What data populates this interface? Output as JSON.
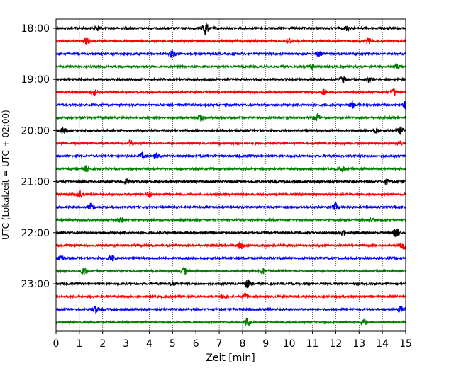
{
  "chart_data": {
    "type": "line",
    "title": "",
    "xlabel": "Zeit  [min]",
    "ylabel": "UTC (Lokalzeit = UTC + 02:00)",
    "xlim": [
      0,
      15
    ],
    "x_ticks": [
      0,
      1,
      2,
      3,
      4,
      5,
      6,
      7,
      8,
      9,
      10,
      11,
      12,
      13,
      14,
      15
    ],
    "x_tick_labels": [
      "0",
      "1",
      "2",
      "3",
      "4",
      "5",
      "6",
      "7",
      "8",
      "9",
      "10",
      "11",
      "12",
      "13",
      "14",
      "15"
    ],
    "y_tick_labels": [
      "18:00",
      "19:00",
      "20:00",
      "21:00",
      "22:00",
      "23:00"
    ],
    "trace_interval_min": 15,
    "first_trace_time": "18:00",
    "trace_count": 24,
    "trace_colors": [
      "#000000",
      "#ff0000",
      "#0000ff",
      "#008000"
    ],
    "vertical_grid": true,
    "grid_style": "dotted",
    "series": [
      {
        "start": "18:00",
        "color": "#000000",
        "events": [
          [
            6.4,
            1.0
          ],
          [
            1.8,
            0.35
          ],
          [
            12.5,
            0.35
          ]
        ]
      },
      {
        "start": "18:15",
        "color": "#ff0000",
        "events": [
          [
            1.3,
            0.45
          ],
          [
            10.0,
            0.4
          ],
          [
            13.4,
            0.4
          ]
        ]
      },
      {
        "start": "18:30",
        "color": "#0000ff",
        "events": [
          [
            5.0,
            0.45
          ],
          [
            11.3,
            0.35
          ]
        ]
      },
      {
        "start": "18:45",
        "color": "#008000",
        "events": [
          [
            11.0,
            0.35
          ],
          [
            14.6,
            0.35
          ]
        ]
      },
      {
        "start": "19:00",
        "color": "#000000",
        "events": [
          [
            12.3,
            0.4
          ],
          [
            13.4,
            0.35
          ]
        ]
      },
      {
        "start": "19:15",
        "color": "#ff0000",
        "events": [
          [
            1.6,
            0.6
          ],
          [
            11.5,
            0.35
          ],
          [
            14.5,
            0.5
          ]
        ]
      },
      {
        "start": "19:30",
        "color": "#0000ff",
        "events": [
          [
            12.7,
            0.5
          ],
          [
            15.0,
            0.5
          ]
        ]
      },
      {
        "start": "19:45",
        "color": "#008000",
        "events": [
          [
            6.2,
            0.4
          ],
          [
            11.2,
            0.6
          ]
        ]
      },
      {
        "start": "20:00",
        "color": "#000000",
        "events": [
          [
            0.3,
            0.5
          ],
          [
            13.7,
            0.45
          ],
          [
            14.8,
            0.55
          ]
        ]
      },
      {
        "start": "20:15",
        "color": "#ff0000",
        "events": [
          [
            3.2,
            0.45
          ],
          [
            14.7,
            0.35
          ]
        ]
      },
      {
        "start": "20:30",
        "color": "#0000ff",
        "events": [
          [
            3.7,
            0.4
          ],
          [
            4.3,
            0.35
          ]
        ]
      },
      {
        "start": "20:45",
        "color": "#008000",
        "events": [
          [
            1.3,
            0.4
          ],
          [
            12.3,
            0.35
          ]
        ]
      },
      {
        "start": "21:00",
        "color": "#000000",
        "events": [
          [
            3.0,
            0.35
          ],
          [
            14.2,
            0.35
          ]
        ]
      },
      {
        "start": "21:15",
        "color": "#ff0000",
        "events": [
          [
            1.0,
            0.4
          ],
          [
            4.0,
            0.35
          ]
        ]
      },
      {
        "start": "21:30",
        "color": "#0000ff",
        "events": [
          [
            1.5,
            0.5
          ],
          [
            12.0,
            0.5
          ]
        ]
      },
      {
        "start": "21:45",
        "color": "#008000",
        "events": [
          [
            2.8,
            0.3
          ],
          [
            13.5,
            0.3
          ]
        ]
      },
      {
        "start": "22:00",
        "color": "#000000",
        "events": [
          [
            12.3,
            0.4
          ],
          [
            14.6,
            0.7
          ]
        ]
      },
      {
        "start": "22:15",
        "color": "#ff0000",
        "events": [
          [
            7.9,
            0.5
          ],
          [
            14.9,
            0.6
          ]
        ]
      },
      {
        "start": "22:30",
        "color": "#0000ff",
        "events": [
          [
            0.2,
            0.5
          ],
          [
            2.4,
            0.4
          ]
        ]
      },
      {
        "start": "22:45",
        "color": "#008000",
        "events": [
          [
            1.2,
            0.45
          ],
          [
            5.5,
            0.5
          ],
          [
            8.9,
            0.4
          ]
        ]
      },
      {
        "start": "23:00",
        "color": "#000000",
        "events": [
          [
            8.2,
            0.5
          ],
          [
            5.0,
            0.35
          ]
        ]
      },
      {
        "start": "23:15",
        "color": "#ff0000",
        "events": [
          [
            7.2,
            0.4
          ],
          [
            8.1,
            0.35
          ]
        ]
      },
      {
        "start": "23:30",
        "color": "#0000ff",
        "events": [
          [
            1.7,
            0.45
          ],
          [
            14.8,
            0.45
          ]
        ]
      },
      {
        "start": "23:45",
        "color": "#008000",
        "events": [
          [
            8.2,
            0.6
          ],
          [
            13.2,
            0.4
          ]
        ]
      }
    ]
  }
}
